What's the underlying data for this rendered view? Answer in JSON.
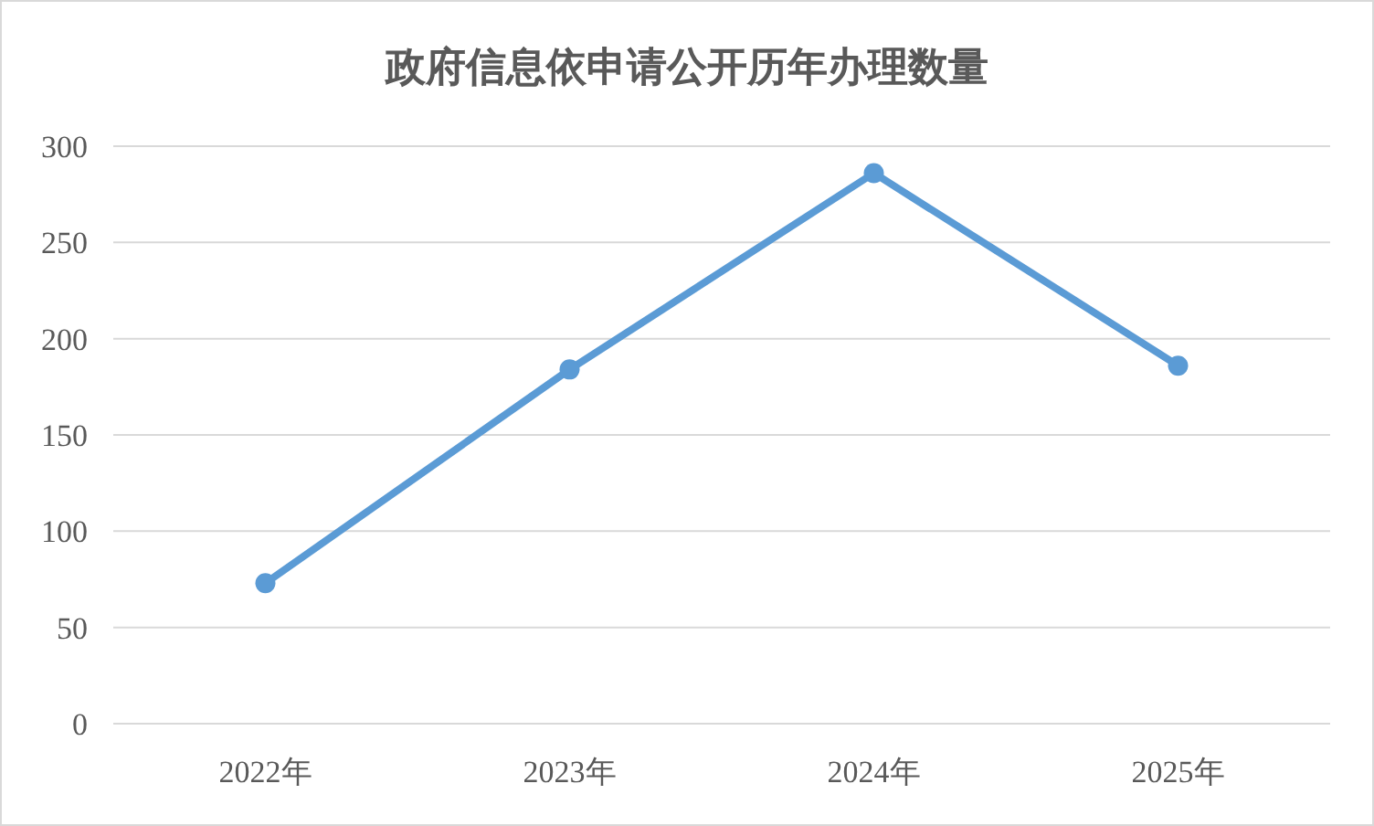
{
  "chart_data": {
    "type": "line",
    "title": "政府信息依申请公开历年办理数量",
    "categories": [
      "2022年",
      "2023年",
      "2024年",
      "2025年"
    ],
    "series": [
      {
        "color": "#5b9bd5",
        "values": [
          73,
          184,
          286,
          186
        ]
      }
    ],
    "ylim": [
      0,
      300
    ],
    "yticks": [
      0,
      50,
      100,
      150,
      200,
      250,
      300
    ],
    "grid": "y",
    "marker": "circle",
    "line_style": "solid"
  }
}
